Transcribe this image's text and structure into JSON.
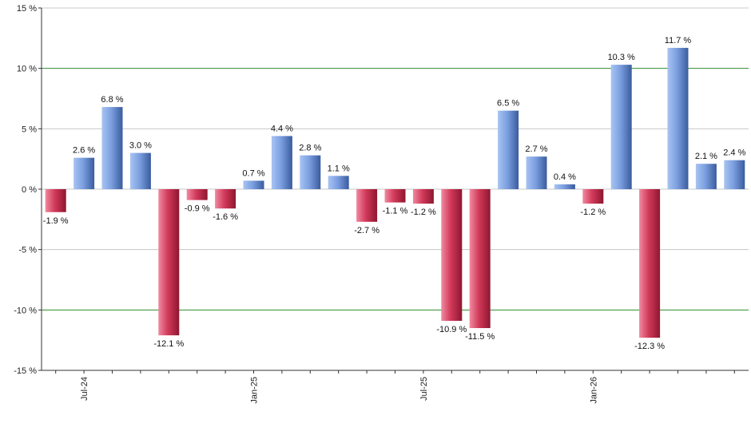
{
  "chart_data": {
    "type": "bar",
    "title": "",
    "xlabel": "",
    "ylabel": "",
    "ylim": [
      -15,
      15
    ],
    "yticks": [
      15,
      10,
      5,
      0,
      -5,
      -10,
      -15
    ],
    "ytick_labels": [
      "15 %",
      "10 %",
      "5 %",
      "0 %",
      "-5 %",
      "-10 %",
      "-15 %"
    ],
    "reference_lines": [
      10,
      -10
    ],
    "xtick_labels": [
      {
        "label": "Jul-24",
        "bar_index": 1
      },
      {
        "label": "Jan-25",
        "bar_index": 7
      },
      {
        "label": "Jul-25",
        "bar_index": 13
      },
      {
        "label": "Jan-26",
        "bar_index": 19
      }
    ],
    "values": [
      -1.9,
      2.6,
      6.8,
      3.0,
      -12.1,
      -0.9,
      -1.6,
      0.7,
      4.4,
      2.8,
      1.1,
      -2.7,
      -1.1,
      -1.2,
      -10.9,
      -11.5,
      6.5,
      2.7,
      0.4,
      -1.2,
      10.3,
      -12.3,
      11.7,
      2.1,
      2.4
    ],
    "value_labels": [
      "-1.9 %",
      "2.6 %",
      "6.8 %",
      "3.0 %",
      "-12.1 %",
      "-0.9 %",
      "-1.6 %",
      "0.7 %",
      "4.4 %",
      "2.8 %",
      "1.1 %",
      "-2.7 %",
      "-1.1 %",
      "-1.2 %",
      "-10.9 %",
      "-11.5 %",
      "6.5 %",
      "2.7 %",
      "0.4 %",
      "-1.2 %",
      "10.3 %",
      "-12.3 %",
      "11.7 %",
      "2.1 %",
      "2.4 %"
    ],
    "grid": true,
    "legend": "none",
    "colors": {
      "positive_light": "#a8c4f2",
      "positive_mid": "#6f94d8",
      "positive_dark": "#3a5c9e",
      "negative_light": "#f08aa0",
      "negative_mid": "#d23a5a",
      "negative_dark": "#8e1630",
      "gridline": "#c8c8c8",
      "reference_line": "#2e8b2e",
      "axis": "#333333"
    }
  }
}
